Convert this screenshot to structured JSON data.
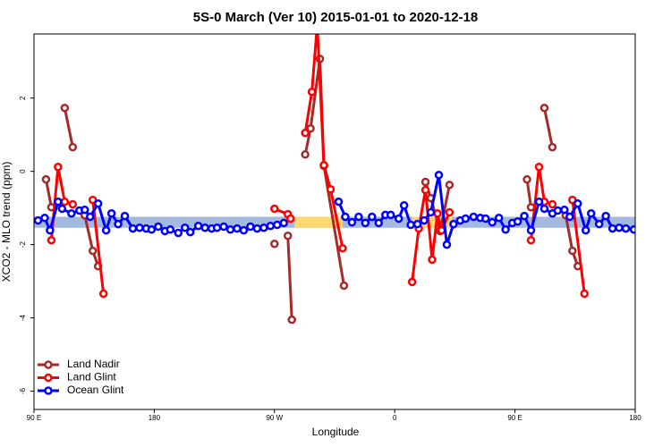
{
  "chart_data": {
    "type": "line",
    "title": "5S-0 March (Ver 10)   2015-01-01 to 2020-12-18",
    "xlabel": "Longitude",
    "ylabel": "XCO2 - MLO trend (ppm)",
    "xlim": [
      90,
      540
    ],
    "ylim": [
      -6.5,
      3.75
    ],
    "xticks": [
      {
        "value": 90,
        "label": "90 E"
      },
      180,
      {
        "value": 270,
        "label": "90 W"
      },
      {
        "value": 360,
        "label": "0"
      },
      {
        "value": 450,
        "label": "90 E"
      },
      {
        "value": 540,
        "label": "180"
      }
    ],
    "yticks": [
      -6,
      -4,
      -2,
      0,
      2
    ],
    "legend": "bottom-left",
    "band": {
      "lower": -1.54,
      "upper": -1.24,
      "color": "#a3b9de",
      "highlight_color": "#ffd970",
      "highlight_x": [
        [
          285,
          321
        ],
        [
          373,
          403
        ]
      ]
    },
    "series": [
      {
        "name": "Land Nadir",
        "color": "#a52a2a",
        "x": [
          99,
          103,
          null,
          113,
          119,
          null,
          128,
          134,
          138,
          null,
          270,
          null,
          280,
          283,
          null,
          293,
          297,
          304,
          307,
          322,
          null,
          383,
          387,
          394,
          401,
          null,
          459,
          462,
          null,
          472,
          478,
          null,
          488,
          493,
          497
        ],
        "values": [
          -0.22,
          -0.98,
          null,
          1.73,
          0.66,
          null,
          -1.2,
          -2.17,
          -2.59,
          null,
          -1.98,
          null,
          -1.76,
          -4.05,
          null,
          0.46,
          1.17,
          3.07,
          0.15,
          -3.12,
          null,
          -0.29,
          -0.73,
          -1.63,
          -0.37,
          null,
          -0.22,
          -0.98,
          null,
          1.73,
          0.66,
          null,
          -1.2,
          -2.17,
          -2.59
        ]
      },
      {
        "name": "Land Glint",
        "color": "#ff0000",
        "x": [
          103,
          108,
          113,
          119,
          null,
          134,
          142,
          null,
          270,
          280,
          282,
          null,
          293,
          298,
          302,
          307,
          312,
          321,
          null,
          373,
          378,
          383,
          388,
          392,
          395,
          401,
          null,
          462,
          468,
          472,
          478,
          null,
          493,
          502
        ],
        "values": [
          -1.88,
          0.12,
          -0.83,
          -0.9,
          null,
          -0.78,
          -3.34,
          null,
          -1.02,
          -1.17,
          -1.29,
          null,
          1.05,
          2.17,
          4.0,
          0.17,
          -0.49,
          -2.1,
          null,
          -3.02,
          -1.56,
          -0.51,
          -2.41,
          -1.15,
          -1.61,
          -1.12,
          null,
          -1.88,
          0.12,
          -0.83,
          -0.9,
          null,
          -0.78,
          -3.34
        ]
      },
      {
        "name": "Ocean Glint",
        "color": "#0000ff",
        "x": [
          93,
          98,
          102,
          108,
          111,
          118,
          124,
          128,
          132,
          138,
          144,
          148,
          153,
          158,
          164,
          169,
          174,
          178,
          183,
          188,
          192,
          198,
          203,
          207,
          213,
          218,
          223,
          227,
          232,
          237,
          242,
          247,
          252,
          257,
          262,
          267,
          272,
          277,
          null,
          318,
          323,
          328,
          333,
          338,
          343,
          348,
          353,
          357,
          363,
          367,
          372,
          377,
          382,
          387,
          393,
          399,
          404,
          409,
          413,
          419,
          424,
          428,
          433,
          438,
          443,
          448,
          452,
          457,
          462,
          468,
          472,
          478,
          482,
          487,
          491,
          497,
          503,
          507,
          513,
          518,
          523,
          528,
          533,
          539
        ],
        "values": [
          -1.34,
          -1.27,
          -1.61,
          -0.83,
          -1.02,
          -1.15,
          -1.07,
          -1.05,
          -1.24,
          -0.88,
          -1.61,
          -1.15,
          -1.44,
          -1.22,
          -1.56,
          -1.54,
          -1.56,
          -1.59,
          -1.51,
          -1.63,
          -1.59,
          -1.68,
          -1.54,
          -1.66,
          -1.49,
          -1.54,
          -1.56,
          -1.54,
          -1.51,
          -1.59,
          -1.56,
          -1.61,
          -1.51,
          -1.56,
          -1.54,
          -1.49,
          -1.46,
          -1.41,
          null,
          -0.83,
          -1.24,
          -1.39,
          -1.24,
          -1.41,
          -1.24,
          -1.41,
          -1.19,
          -1.19,
          -1.29,
          -0.93,
          -1.46,
          -1.44,
          -1.34,
          -1.12,
          -0.1,
          -2.0,
          -1.44,
          -1.34,
          -1.29,
          -1.24,
          -1.27,
          -1.29,
          -1.39,
          -1.27,
          -1.59,
          -1.41,
          -1.37,
          -1.22,
          -1.61,
          -0.83,
          -1.02,
          -1.15,
          -1.07,
          -1.05,
          -1.24,
          -0.88,
          -1.61,
          -1.15,
          -1.44,
          -1.22,
          -1.56,
          -1.54,
          -1.56,
          -1.59
        ]
      }
    ]
  }
}
